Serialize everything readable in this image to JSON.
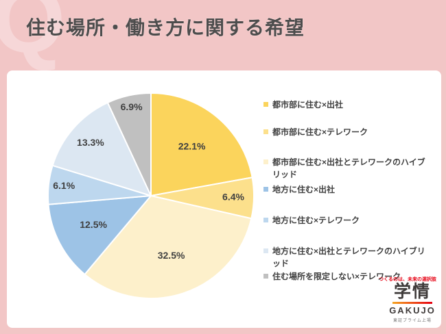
{
  "page": {
    "watermark": "Q",
    "title": "住む場所・働き方に関する希望"
  },
  "chart_data": {
    "type": "pie",
    "title": "住む場所・働き方に関する希望",
    "start_angle_deg": 0,
    "direction": "clockwise",
    "legend_position": "right",
    "labels": [
      "都市部に住む×出社",
      "都市部に住む×テレワーク",
      "都市部に住む×出社とテレワークのハイブリッド",
      "地方に住む×出社",
      "地方に住む×テレワーク",
      "地方に住む×出社とテレワークのハイブリッド",
      "住む場所を限定しない×テレワーク"
    ],
    "values": [
      22.1,
      6.4,
      32.5,
      12.5,
      6.1,
      13.3,
      6.9
    ],
    "value_labels": [
      "22.1%",
      "6.4%",
      "32.5%",
      "12.5%",
      "6.1%",
      "13.3%",
      "6.9%"
    ],
    "colors": [
      "#FBD45C",
      "#FCE08C",
      "#FDF0CB",
      "#9DC3E6",
      "#BDD7EE",
      "#DCE7F2",
      "#C0C0C0"
    ],
    "label_radius_fractions": [
      0.62,
      0.8,
      0.62,
      0.63,
      0.85,
      0.78,
      0.88
    ],
    "slice_border_color": "#FFFFFF"
  },
  "logo": {
    "tagline": "つくるのは、未来の選択肢",
    "name_jp": "学情",
    "name_en": "GAKUJO",
    "listing": "東証プライム上場"
  },
  "colors": {
    "background": "#F2C6C6",
    "card": "#FFFFFF",
    "title_text": "#4D4D4D",
    "label_text": "#404040",
    "logo_red": "#E60012"
  }
}
